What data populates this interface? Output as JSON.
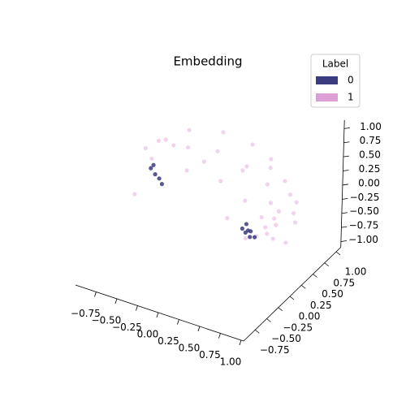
{
  "chart_data": {
    "type": "scatter3d",
    "title": "Embedding",
    "legend_title": "Label",
    "legend_loc": "upper right",
    "xlim": [
      -1,
      1.03
    ],
    "ylim": [
      -1,
      1.1
    ],
    "zlim": [
      -1.1,
      1.15
    ],
    "xticks": [
      {
        "value": -0.75,
        "label": "−0.75"
      },
      {
        "value": -0.5,
        "label": "−0.50"
      },
      {
        "value": -0.25,
        "label": "−0.25"
      },
      {
        "value": 0,
        "label": "0.00"
      },
      {
        "value": 0.25,
        "label": "0.25"
      },
      {
        "value": 0.5,
        "label": "0.50"
      },
      {
        "value": 0.75,
        "label": "0.75"
      },
      {
        "value": 1,
        "label": "1.00"
      }
    ],
    "yticks": [
      {
        "value": -0.75,
        "label": "−0.75"
      },
      {
        "value": -0.5,
        "label": "−0.50"
      },
      {
        "value": -0.25,
        "label": "−0.25"
      },
      {
        "value": 0,
        "label": "0.00"
      },
      {
        "value": 0.25,
        "label": "0.25"
      },
      {
        "value": 0.5,
        "label": "0.50"
      },
      {
        "value": 0.75,
        "label": "0.75"
      },
      {
        "value": 1,
        "label": "1.00"
      }
    ],
    "zticks": [
      {
        "value": -1,
        "label": "−1.00"
      },
      {
        "value": -0.75,
        "label": "−0.75"
      },
      {
        "value": -0.5,
        "label": "−0.50"
      },
      {
        "value": -0.25,
        "label": "−0.25"
      },
      {
        "value": 0,
        "label": "0.00"
      },
      {
        "value": 0.25,
        "label": "0.25"
      },
      {
        "value": 0.5,
        "label": "0.50"
      },
      {
        "value": 0.75,
        "label": "0.75"
      },
      {
        "value": 1,
        "label": "1.00"
      }
    ],
    "series": [
      {
        "name": "1",
        "color": "#dd9fd6",
        "x": [
          -0.5,
          -0.7,
          -0.8,
          -0.2,
          0.1,
          0.3,
          0.5,
          0.7,
          0.8,
          0.8,
          -0.4,
          -0.1,
          0.2,
          0.4,
          0.5,
          0.6,
          0.55,
          0.65,
          0.7,
          0.45,
          0.6,
          0.5,
          -0.6,
          -0.3,
          0,
          0.3,
          0.1,
          -0.75,
          0.75,
          0.65,
          0.35,
          0.4,
          0.6,
          -0.15,
          0.2,
          -0.7,
          -0.75
        ],
        "y": [
          0.5,
          0.2,
          0.1,
          0.7,
          0.8,
          0.85,
          0.8,
          0.7,
          0.5,
          0.3,
          0.3,
          0.4,
          0.5,
          0.6,
          0.5,
          0.4,
          0.3,
          0.35,
          0.2,
          0.4,
          0.5,
          0.2,
          0.35,
          0.1,
          0.3,
          0.3,
          0.6,
          0.45,
          0.55,
          0.65,
          0.75,
          0.15,
          0.25,
          0.2,
          0.1,
          -0.3,
          0.15
        ],
        "z": [
          0.7,
          0.65,
          0.55,
          0.65,
          0.5,
          0.3,
          0.05,
          -0.15,
          -0.3,
          -0.5,
          0.6,
          0.6,
          0.4,
          0.1,
          -0.1,
          -0.25,
          -0.35,
          -0.3,
          -0.4,
          -0.3,
          -0.2,
          -0.45,
          0.5,
          0.4,
          0.2,
          0,
          0.2,
          0.45,
          -0.2,
          0,
          0.25,
          -0.5,
          -0.4,
          0.55,
          -0.2,
          0.1,
          0.35
        ]
      },
      {
        "name": "0",
        "color": "#3b3b7f",
        "x": [
          0.4,
          0.38,
          0.45,
          0.35,
          0.42,
          0.48,
          0.33,
          -0.7,
          -0.65,
          -0.6,
          -0.55,
          -0.72
        ],
        "y": [
          0.2,
          0.18,
          0.15,
          0.25,
          0.22,
          0.2,
          0.2,
          0.1,
          0.05,
          0.05,
          0.02,
          0.08
        ],
        "z": [
          -0.4,
          -0.43,
          -0.45,
          -0.35,
          -0.42,
          -0.48,
          -0.4,
          0.3,
          0.2,
          0.15,
          0.1,
          0.25
        ]
      }
    ]
  }
}
